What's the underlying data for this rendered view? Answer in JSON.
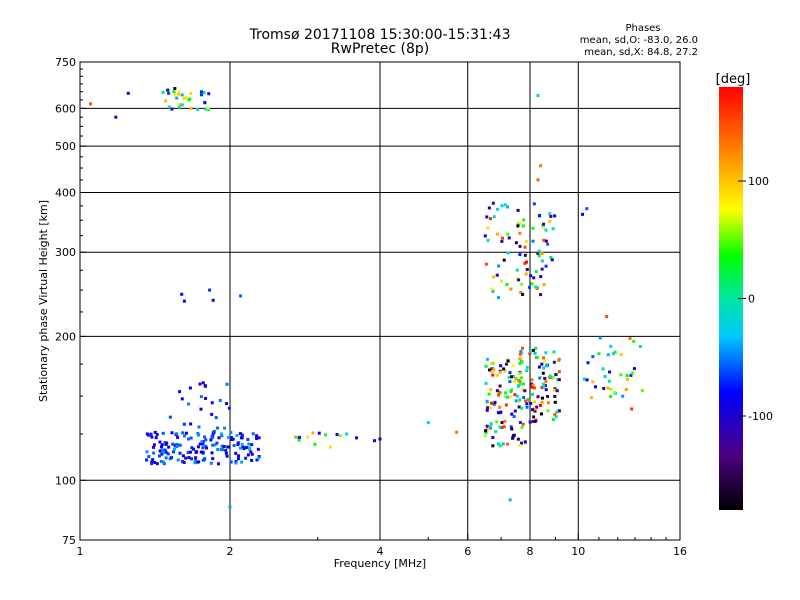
{
  "chart_data": {
    "type": "scatter",
    "title": "Tromsø 20171108 15:30:00-15:31:43",
    "subtitle": "RwPretec (8p)",
    "stats": {
      "heading": "Phases",
      "line1": "mean, sd,O: -83.0, 26.0",
      "line2": "mean, sd,X: 84.8, 27.2"
    },
    "xlabel": "Frequency [MHz]",
    "ylabel": "Stationary phase Virtual Height [km]",
    "xscale": "log",
    "yscale": "log",
    "xlim": [
      1,
      16
    ],
    "ylim": [
      75,
      750
    ],
    "xticks": [
      1,
      2,
      4,
      6,
      8,
      10,
      16
    ],
    "yticks": [
      75,
      100,
      200,
      300,
      400,
      500,
      600,
      750
    ],
    "xgrid": [
      2,
      4,
      6,
      8,
      10
    ],
    "ygrid": [
      100,
      200,
      300,
      400,
      500,
      600
    ],
    "grid": true,
    "colorbar": {
      "label": "[deg]",
      "min": -180,
      "max": 180,
      "ticks": [
        100,
        0,
        -100
      ]
    },
    "clusters": [
      {
        "f": [
          1.45,
          1.82
        ],
        "h": [
          592,
          655
        ],
        "phase": [
          -130,
          110
        ],
        "n": 30
      },
      {
        "f": [
          1.35,
          2.3
        ],
        "h": [
          108,
          126
        ],
        "phase": [
          -110,
          -40
        ],
        "n": 170
      },
      {
        "f": [
          1.5,
          2.0
        ],
        "h": [
          126,
          160
        ],
        "phase": [
          -110,
          -40
        ],
        "n": 25
      },
      {
        "f": [
          2.7,
          3.6
        ],
        "h": [
          117,
          126
        ],
        "phase": [
          -100,
          130
        ],
        "n": 14
      },
      {
        "f": [
          6.5,
          7.9
        ],
        "h": [
          118,
          180
        ],
        "phase": [
          -180,
          180
        ],
        "n": 110
      },
      {
        "f": [
          7.6,
          9.2
        ],
        "h": [
          130,
          190
        ],
        "phase": [
          -180,
          180
        ],
        "n": 90
      },
      {
        "f": [
          6.5,
          9.0
        ],
        "h": [
          240,
          380
        ],
        "phase": [
          -180,
          180
        ],
        "n": 90
      },
      {
        "f": [
          10.0,
          13.5
        ],
        "h": [
          148,
          200
        ],
        "phase": [
          -120,
          120
        ],
        "n": 35
      }
    ],
    "points": [
      {
        "x": 1.05,
        "y": 613,
        "phase": 150
      },
      {
        "x": 1.18,
        "y": 575,
        "phase": -110
      },
      {
        "x": 1.25,
        "y": 645,
        "phase": -100
      },
      {
        "x": 1.5,
        "y": 655,
        "phase": -150
      },
      {
        "x": 1.55,
        "y": 660,
        "phase": -170
      },
      {
        "x": 1.6,
        "y": 245,
        "phase": -80
      },
      {
        "x": 1.62,
        "y": 237,
        "phase": -90
      },
      {
        "x": 1.82,
        "y": 250,
        "phase": -70
      },
      {
        "x": 1.85,
        "y": 238,
        "phase": -100
      },
      {
        "x": 2.1,
        "y": 243,
        "phase": -60
      },
      {
        "x": 2.0,
        "y": 88,
        "phase": -40
      },
      {
        "x": 3.9,
        "y": 121,
        "phase": -110
      },
      {
        "x": 4.0,
        "y": 122,
        "phase": -90
      },
      {
        "x": 5.0,
        "y": 132,
        "phase": -30
      },
      {
        "x": 5.7,
        "y": 126,
        "phase": 130
      },
      {
        "x": 7.3,
        "y": 91,
        "phase": -40
      },
      {
        "x": 8.3,
        "y": 638,
        "phase": -30
      },
      {
        "x": 8.4,
        "y": 455,
        "phase": 130
      },
      {
        "x": 8.3,
        "y": 425,
        "phase": 140
      },
      {
        "x": 10.2,
        "y": 360,
        "phase": -80
      },
      {
        "x": 10.4,
        "y": 370,
        "phase": -60
      },
      {
        "x": 11.4,
        "y": 220,
        "phase": 150
      },
      {
        "x": 12.7,
        "y": 198,
        "phase": 130
      },
      {
        "x": 12.8,
        "y": 141,
        "phase": 160
      }
    ]
  }
}
